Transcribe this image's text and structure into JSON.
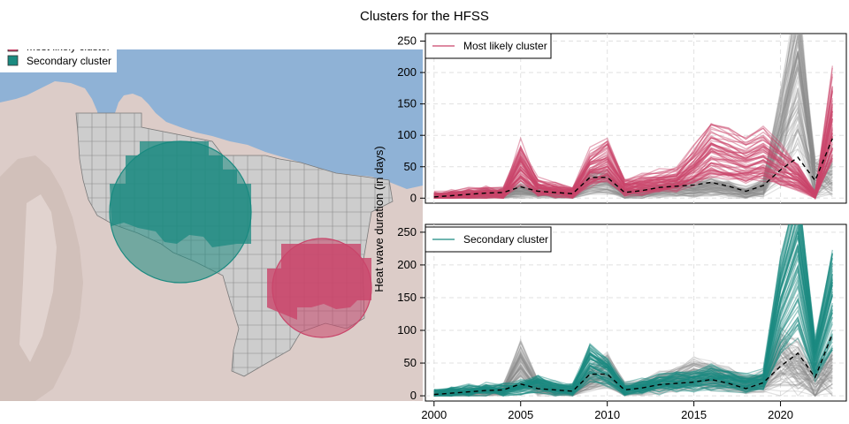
{
  "figure": {
    "title": "Clusters for the HFSS",
    "map_legend": [
      {
        "label": "Most likely cluster",
        "color": "#c9456a"
      },
      {
        "label": "Secondary cluster",
        "color": "#1b8a80"
      }
    ],
    "ylabel": "Heat wave duration (in days)",
    "colors": {
      "most_likely": "#c9456a",
      "secondary": "#1b8a80",
      "background_lines": "#8a8a8a",
      "mean_line": "#000000",
      "sea": "#8fb2d6",
      "land": "#dcccc8",
      "grid_fill": "#c8c8c8"
    }
  },
  "chart_data": [
    {
      "type": "line",
      "panel": "top",
      "legend": "Most likely cluster",
      "x_ticks": [
        2000,
        2005,
        2010,
        2015,
        2020
      ],
      "y_ticks": [
        0,
        50,
        100,
        150,
        200,
        250
      ],
      "xlim": [
        1999.5,
        2023.8
      ],
      "ylim": [
        -8,
        262
      ],
      "grid": true,
      "legend_position": "top-left",
      "x": [
        2000,
        2001,
        2002,
        2003,
        2004,
        2005,
        2006,
        2007,
        2008,
        2009,
        2010,
        2011,
        2012,
        2013,
        2014,
        2015,
        2016,
        2017,
        2018,
        2019,
        2020,
        2021,
        2022,
        2023
      ],
      "mean_series": {
        "style": "dashed",
        "values": [
          2,
          4,
          6,
          8,
          9,
          18,
          11,
          9,
          7,
          33,
          33,
          9,
          12,
          17,
          19,
          21,
          25,
          19,
          11,
          20,
          45,
          65,
          28,
          95
        ]
      },
      "highlight_series": {
        "name": "Most likely cluster",
        "values": [
          3,
          5,
          8,
          10,
          8,
          65,
          20,
          15,
          10,
          55,
          70,
          20,
          25,
          30,
          35,
          60,
          90,
          80,
          70,
          80,
          60,
          40,
          5,
          150
        ]
      },
      "background_series_example": {
        "values": [
          2,
          4,
          5,
          7,
          8,
          15,
          9,
          8,
          6,
          30,
          30,
          8,
          10,
          15,
          18,
          18,
          22,
          18,
          10,
          20,
          100,
          225,
          20,
          30
        ]
      }
    },
    {
      "type": "line",
      "panel": "bottom",
      "legend": "Secondary cluster",
      "x_ticks": [
        2000,
        2005,
        2010,
        2015,
        2020
      ],
      "y_ticks": [
        0,
        50,
        100,
        150,
        200,
        250
      ],
      "xlim": [
        1999.5,
        2023.8
      ],
      "ylim": [
        -8,
        262
      ],
      "grid": true,
      "legend_position": "top-left",
      "x": [
        2000,
        2001,
        2002,
        2003,
        2004,
        2005,
        2006,
        2007,
        2008,
        2009,
        2010,
        2011,
        2012,
        2013,
        2014,
        2015,
        2016,
        2017,
        2018,
        2019,
        2020,
        2021,
        2022,
        2023
      ],
      "mean_series": {
        "style": "dashed",
        "values": [
          2,
          4,
          6,
          8,
          9,
          18,
          11,
          9,
          7,
          33,
          33,
          9,
          12,
          17,
          19,
          21,
          25,
          19,
          11,
          20,
          45,
          65,
          28,
          95
        ]
      },
      "highlight_series": {
        "name": "Secondary cluster",
        "values": [
          3,
          5,
          8,
          10,
          9,
          15,
          20,
          12,
          10,
          55,
          40,
          10,
          15,
          20,
          22,
          25,
          30,
          25,
          20,
          25,
          150,
          230,
          60,
          160
        ]
      },
      "background_series_example": {
        "values": [
          2,
          4,
          6,
          8,
          10,
          60,
          15,
          10,
          8,
          30,
          45,
          12,
          15,
          25,
          30,
          40,
          35,
          30,
          20,
          25,
          50,
          40,
          10,
          40
        ]
      }
    }
  ]
}
